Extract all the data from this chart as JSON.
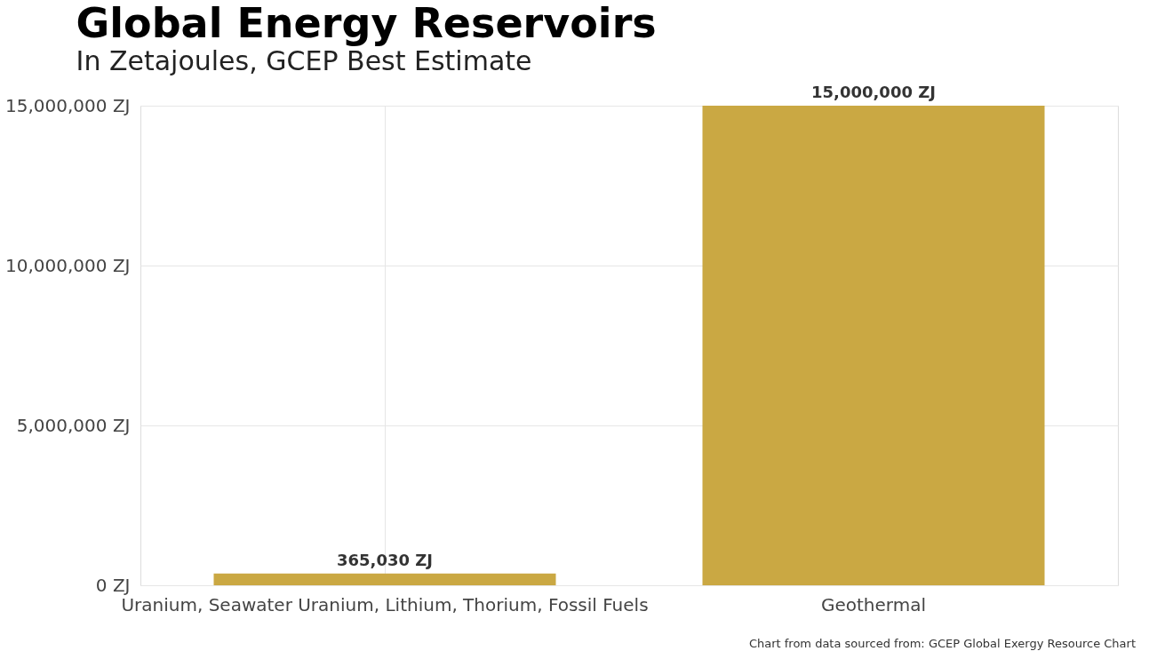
{
  "chart_data": {
    "type": "bar",
    "title": "Global Energy Reservoirs",
    "subtitle": "In Zetajoules, GCEP Best Estimate",
    "categories": [
      "Uranium, Seawater Uranium, Lithium, Thorium, Fossil Fuels",
      "Geothermal"
    ],
    "values": [
      365030,
      15000000
    ],
    "color": "#caa843",
    "value_labels": [
      "365,030 ZJ",
      "15,000,000 ZJ"
    ],
    "ylim": [
      0,
      15000000
    ],
    "yticks": [
      {
        "value": 0,
        "label": "0 ZJ"
      },
      {
        "value": 5000000,
        "label": "5,000,000 ZJ"
      },
      {
        "value": 10000000,
        "label": "10,000,000 ZJ"
      },
      {
        "value": 15000000,
        "label": "15,000,000 ZJ"
      }
    ],
    "grid": true,
    "annotations": [
      "Chart from data sourced from: GCEP Global Exergy Resource Chart"
    ]
  }
}
